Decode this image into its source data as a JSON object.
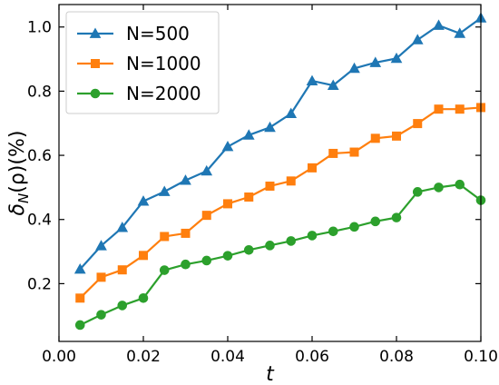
{
  "chart_data": {
    "type": "line",
    "xlabel": "t",
    "ylabel": "δN(ρ)(%)",
    "ylabel_main": "δ",
    "ylabel_sub": "N",
    "ylabel_rest": "(ρ)(%)",
    "xlim": [
      0.0,
      0.1
    ],
    "ylim": [
      0.02,
      1.07
    ],
    "xticks": [
      "0.00",
      "0.02",
      "0.04",
      "0.06",
      "0.08",
      "0.10"
    ],
    "xtick_values": [
      0.0,
      0.02,
      0.04,
      0.06,
      0.08,
      0.1
    ],
    "yticks": [
      "0.2",
      "0.4",
      "0.6",
      "0.8",
      "1.0"
    ],
    "ytick_values": [
      0.2,
      0.4,
      0.6,
      0.8,
      1.0
    ],
    "grid": false,
    "legend_position": "top-left",
    "x": [
      0.005,
      0.01,
      0.015,
      0.02,
      0.025,
      0.03,
      0.035,
      0.04,
      0.045,
      0.05,
      0.055,
      0.06,
      0.065,
      0.07,
      0.075,
      0.08,
      0.085,
      0.09,
      0.095,
      0.1
    ],
    "series": [
      {
        "name": "N=500",
        "color": "#1f77b4",
        "marker": "triangle",
        "values": [
          0.245,
          0.318,
          0.375,
          0.457,
          0.487,
          0.522,
          0.551,
          0.627,
          0.663,
          0.687,
          0.73,
          0.832,
          0.818,
          0.871,
          0.889,
          0.902,
          0.96,
          1.005,
          0.98,
          1.028
        ]
      },
      {
        "name": "N=1000",
        "color": "#ff7f0e",
        "marker": "square",
        "values": [
          0.155,
          0.22,
          0.243,
          0.288,
          0.347,
          0.357,
          0.413,
          0.449,
          0.47,
          0.504,
          0.52,
          0.561,
          0.606,
          0.61,
          0.653,
          0.66,
          0.699,
          0.744,
          0.744,
          0.749
        ]
      },
      {
        "name": "N=2000",
        "color": "#2ca02c",
        "marker": "circle",
        "values": [
          0.071,
          0.103,
          0.132,
          0.155,
          0.242,
          0.26,
          0.272,
          0.287,
          0.305,
          0.319,
          0.333,
          0.35,
          0.363,
          0.377,
          0.394,
          0.406,
          0.486,
          0.5,
          0.509,
          0.46
        ]
      }
    ]
  }
}
